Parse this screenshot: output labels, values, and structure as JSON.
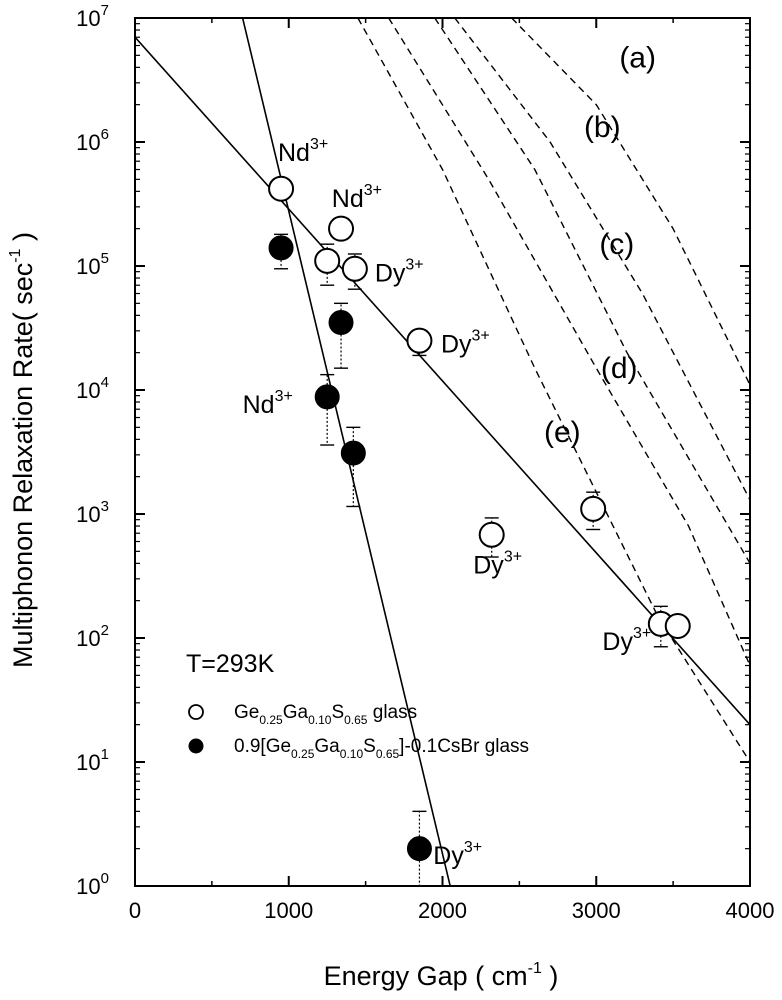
{
  "chart_data": {
    "type": "scatter",
    "title": "",
    "xlabel": "Energy Gap ( cm",
    "xlabel_sup": "-1",
    "xlabel_end": ")",
    "ylabel": "Multiphonon Relaxation Rate( sec",
    "ylabel_sup": "-1",
    "ylabel_end": ")",
    "xlim": [
      0,
      4000
    ],
    "ylim": [
      1,
      10000000
    ],
    "yscale": "log",
    "grid": false,
    "xticks": [
      "0",
      "1000",
      "2000",
      "3000",
      "4000"
    ],
    "yticks": [
      {
        "base": "10",
        "exp": "0"
      },
      {
        "base": "10",
        "exp": "1"
      },
      {
        "base": "10",
        "exp": "2"
      },
      {
        "base": "10",
        "exp": "3"
      },
      {
        "base": "10",
        "exp": "4"
      },
      {
        "base": "10",
        "exp": "5"
      },
      {
        "base": "10",
        "exp": "6"
      },
      {
        "base": "10",
        "exp": "7"
      }
    ],
    "temperature_label": "T=293K",
    "legend": {
      "position": "lower-left",
      "entries": [
        {
          "marker": "open-circle",
          "parts": [
            [
              "Ge",
              ""
            ],
            [
              "0.25",
              "sub"
            ],
            [
              "Ga",
              ""
            ],
            [
              "0.10",
              "sub"
            ],
            [
              "S",
              ""
            ],
            [
              "0.65",
              "sub"
            ],
            [
              " glass",
              ""
            ]
          ]
        },
        {
          "marker": "filled-circle",
          "parts": [
            [
              "0.9[Ge",
              ""
            ],
            [
              "0.25",
              "sub"
            ],
            [
              "Ga",
              ""
            ],
            [
              "0.10",
              "sub"
            ],
            [
              "S",
              ""
            ],
            [
              "0.65",
              "sub"
            ],
            [
              "]-0.1CsBr glass",
              ""
            ]
          ]
        }
      ]
    },
    "series": [
      {
        "marker": "open",
        "points": [
          {
            "x": 950,
            "y": 420000,
            "err_low": 0,
            "err_high": 0
          },
          {
            "x": 1340,
            "y": 200000,
            "err_low": 0,
            "err_high": 0
          },
          {
            "x": 1250,
            "y": 110000,
            "err_low": 40000,
            "err_high": 40000
          },
          {
            "x": 1430,
            "y": 95000,
            "err_low": 30000,
            "err_high": 30000
          },
          {
            "x": 1850,
            "y": 25000,
            "err_low": 6000,
            "err_high": 0
          },
          {
            "x": 2320,
            "y": 680,
            "err_low": 230,
            "err_high": 250
          },
          {
            "x": 2980,
            "y": 1100,
            "err_low": 350,
            "err_high": 400
          },
          {
            "x": 3420,
            "y": 130,
            "err_low": 45,
            "err_high": 50
          },
          {
            "x": 3530,
            "y": 125,
            "err_low": 0,
            "err_high": 20
          }
        ]
      },
      {
        "marker": "filled",
        "points": [
          {
            "x": 950,
            "y": 140000,
            "err_low": 45000,
            "err_high": 40000
          },
          {
            "x": 1340,
            "y": 35000,
            "err_low": 20000,
            "err_high": 15000
          },
          {
            "x": 1250,
            "y": 8800,
            "err_low": 5200,
            "err_high": 4500
          },
          {
            "x": 1420,
            "y": 3100,
            "err_low": 1950,
            "err_high": 1900
          },
          {
            "x": 1850,
            "y": 2,
            "err_low": 1.2,
            "err_high": 2
          }
        ]
      }
    ],
    "fit_lines": [
      {
        "style": "solid",
        "points": [
          [
            0,
            7000000
          ],
          [
            4000,
            20
          ]
        ]
      },
      {
        "style": "solid",
        "points": [
          [
            700,
            10000000
          ],
          [
            2050,
            1
          ]
        ]
      }
    ],
    "dashed_curves": [
      {
        "label": "(a)",
        "points": [
          [
            2450,
            10000000
          ],
          [
            3000,
            2000000
          ],
          [
            3500,
            200000
          ],
          [
            4000,
            11000
          ]
        ]
      },
      {
        "label": "(b)",
        "points": [
          [
            2080,
            10000000
          ],
          [
            2700,
            1000000
          ],
          [
            3300,
            60000
          ],
          [
            4000,
            1300
          ]
        ]
      },
      {
        "label": "(c)",
        "points": [
          [
            1950,
            10000000
          ],
          [
            2600,
            600000
          ],
          [
            3200,
            20000
          ],
          [
            4000,
            400
          ]
        ]
      },
      {
        "label": "(d)",
        "points": [
          [
            1650,
            10000000
          ],
          [
            2300,
            500000
          ],
          [
            3000,
            15000
          ],
          [
            3600,
            800
          ],
          [
            4000,
            60
          ]
        ]
      },
      {
        "label": "(e)",
        "points": [
          [
            1450,
            10000000
          ],
          [
            2000,
            600000
          ],
          [
            2600,
            15000
          ],
          [
            3400,
            150
          ],
          [
            4000,
            10
          ]
        ]
      }
    ],
    "curve_labels": [
      {
        "text": "(a)",
        "x": 3150,
        "y": 4000000
      },
      {
        "text": "(b)",
        "x": 2920,
        "y": 1100000
      },
      {
        "text": "(c)",
        "x": 3020,
        "y": 125000
      },
      {
        "text": "(d)",
        "x": 3030,
        "y": 12500
      },
      {
        "text": "(e)",
        "x": 2660,
        "y": 3800
      }
    ],
    "annotations": [
      {
        "base": "Nd",
        "sup": "3+",
        "x": 930,
        "y": 700000
      },
      {
        "base": "Nd",
        "sup": "3+",
        "x": 1280,
        "y": 300000
      },
      {
        "base": "Dy",
        "sup": "3+",
        "x": 1560,
        "y": 75000
      },
      {
        "base": "Dy",
        "sup": "3+",
        "x": 1990,
        "y": 20000
      },
      {
        "base": "Nd",
        "sup": "3+",
        "x": 700,
        "y": 6500
      },
      {
        "base": "Dy",
        "sup": "3+",
        "x": 2200,
        "y": 330
      },
      {
        "base": "Dy",
        "sup": "3+",
        "x": 3040,
        "y": 80
      },
      {
        "base": "Dy",
        "sup": "3+",
        "x": 1940,
        "y": 1.5
      }
    ]
  }
}
